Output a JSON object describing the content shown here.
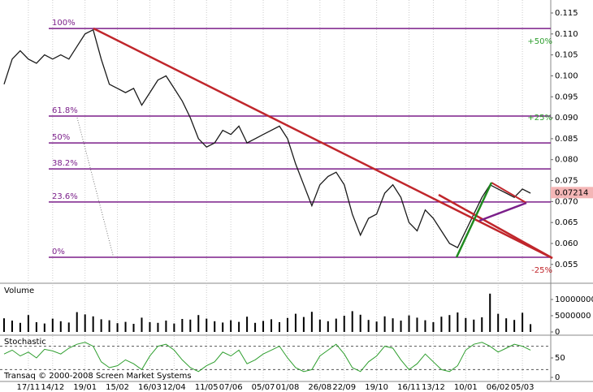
{
  "chart_data": [
    {
      "type": "line",
      "categories": [
        null,
        null,
        null,
        "17/11",
        null,
        null,
        "14/12",
        null,
        null,
        null,
        "19/01",
        null,
        null,
        null,
        "15/02",
        null,
        null,
        null,
        "16/03",
        null,
        null,
        "12/04",
        null,
        null,
        null,
        "11/05",
        null,
        null,
        "07/06",
        null,
        null,
        null,
        "05/07",
        null,
        null,
        "01/08",
        null,
        null,
        null,
        "26/08",
        null,
        null,
        "22/09",
        null,
        null,
        null,
        "19/10",
        null,
        null,
        null,
        "16/11",
        null,
        null,
        "13/12",
        null,
        null,
        null,
        "10/01",
        null,
        null,
        null,
        "06/02",
        null,
        null,
        "05/03",
        null,
        null,
        null
      ],
      "values": [
        0.098,
        0.104,
        0.106,
        0.104,
        0.103,
        0.105,
        0.104,
        0.105,
        0.104,
        0.107,
        0.11,
        0.111,
        0.104,
        0.098,
        0.097,
        0.096,
        0.097,
        0.093,
        0.096,
        0.099,
        0.1,
        0.097,
        0.094,
        0.09,
        0.085,
        0.083,
        0.084,
        0.087,
        0.086,
        0.088,
        0.084,
        0.085,
        0.086,
        0.087,
        0.088,
        0.085,
        0.079,
        0.074,
        0.069,
        0.074,
        0.076,
        0.077,
        0.074,
        0.067,
        0.062,
        0.066,
        0.067,
        0.072,
        0.074,
        0.071,
        0.065,
        0.063,
        0.068,
        0.066,
        0.063,
        0.06,
        0.059,
        0.063,
        0.067,
        0.071,
        0.074,
        0.073,
        0.072,
        0.071,
        0.073,
        0.072,
        null,
        null
      ],
      "color": "#1a1a1a",
      "ylim": [
        0.0507,
        0.1181
      ],
      "yticks": [
        0.055,
        {
          "value": 0.06,
          "label": "0.060"
        },
        0.065,
        {
          "value": 0.07,
          "label": "0.070"
        },
        0.075,
        {
          "value": 0.08,
          "label": "0.080"
        },
        0.085,
        {
          "value": 0.09,
          "label": "0.090"
        },
        0.095,
        {
          "value": 0.1,
          "label": "0.100"
        },
        0.105,
        {
          "value": 0.11,
          "label": "0.110"
        },
        0.115
      ],
      "fib_levels": [
        {
          "label": "100%",
          "value": 0.1113
        },
        {
          "label": "61.8%",
          "value": 0.0904
        },
        {
          "label": "50%",
          "value": 0.084
        },
        {
          "label": "38.2%",
          "value": 0.0778
        },
        {
          "label": "23.6%",
          "value": 0.0699
        },
        {
          "label": "0%",
          "value": 0.0567
        }
      ],
      "fib_color": "#7b1f8a",
      "annotations": [
        "+50%",
        "+25%",
        "-25%"
      ],
      "last_price": 0.07214,
      "grid": true
    },
    {
      "type": "bar",
      "title": "Volume",
      "values": [
        4200000,
        3500000,
        2800000,
        5200000,
        3000000,
        2600000,
        4100000,
        3300000,
        2900000,
        6100000,
        5400000,
        4800000,
        3900000,
        3600000,
        2700000,
        3100000,
        2500000,
        4400000,
        3000000,
        2800000,
        3500000,
        2600000,
        4000000,
        3800000,
        5200000,
        4100000,
        3300000,
        2900000,
        3600000,
        3100000,
        4700000,
        2800000,
        3400000,
        3900000,
        3000000,
        4300000,
        5600000,
        4600000,
        6200000,
        3800000,
        3300000,
        4100000,
        5000000,
        6400000,
        5300000,
        3700000,
        3200000,
        4800000,
        4200000,
        3500000,
        5100000,
        4400000,
        3600000,
        3000000,
        4700000,
        5200000,
        6000000,
        4300000,
        3800000,
        4500000,
        11800000,
        5600000,
        4200000,
        3700000,
        5900000,
        2400000,
        null,
        null
      ],
      "color": "#000000",
      "ylim": [
        0,
        14000000
      ],
      "yticks": [
        0,
        5000000,
        10000000
      ]
    },
    {
      "type": "line",
      "title": "Stochastic",
      "values": [
        60,
        70,
        55,
        65,
        50,
        72,
        68,
        60,
        75,
        85,
        90,
        80,
        40,
        25,
        30,
        45,
        35,
        20,
        55,
        80,
        85,
        70,
        45,
        25,
        15,
        30,
        40,
        65,
        55,
        70,
        35,
        45,
        60,
        70,
        80,
        50,
        25,
        15,
        20,
        55,
        70,
        85,
        60,
        25,
        15,
        40,
        55,
        80,
        75,
        45,
        20,
        35,
        60,
        40,
        20,
        15,
        30,
        70,
        85,
        90,
        80,
        65,
        75,
        85,
        80,
        70,
        null,
        null
      ],
      "color": "#2e9e2e",
      "ylim": [
        0,
        100
      ],
      "yticks": [
        0,
        50
      ],
      "levels": [
        20,
        80
      ]
    }
  ],
  "footer": "Transaq © 2000-2008 Screen Market Systems"
}
